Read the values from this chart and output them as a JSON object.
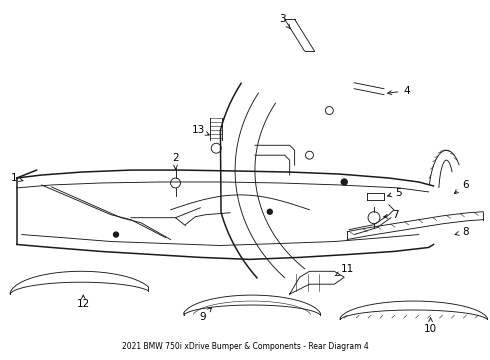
{
  "title": "2021 BMW 750i xDrive Bumper & Components - Rear Diagram 4",
  "bg_color": "#ffffff",
  "line_color": "#1a1a1a",
  "text_color": "#000000",
  "fig_width": 4.9,
  "fig_height": 3.6,
  "dpi": 100,
  "label_fs": 7.5,
  "lw_main": 1.1,
  "lw_thin": 0.65,
  "lw_xtra": 0.4
}
